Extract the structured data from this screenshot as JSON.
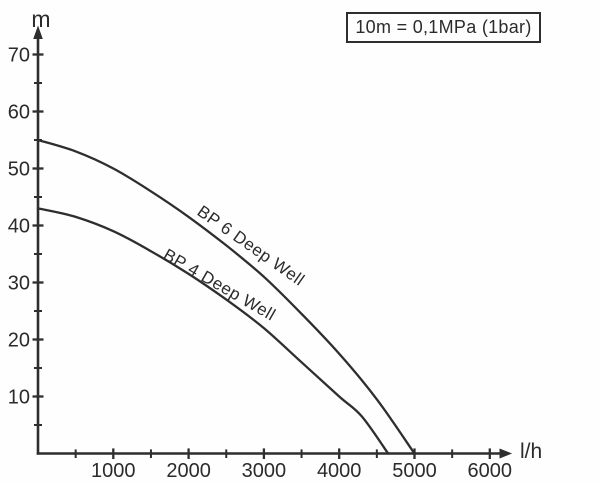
{
  "chart_data": {
    "type": "line",
    "title": "",
    "annotation": "10m = 0,1MPa (1bar)",
    "grid": false,
    "line_color": "#2e2e2e",
    "background_color": "#fefefe",
    "x_axis": {
      "unit": "l/h",
      "range": [
        0,
        6300
      ],
      "major_ticks": [
        1000,
        2000,
        3000,
        4000,
        5000,
        6000
      ],
      "tick_labels": [
        "1000",
        "2000",
        "3000",
        "4000",
        "5000",
        "6000"
      ],
      "minor_ticks": [
        500,
        1500,
        2500,
        3500,
        4500,
        5500
      ]
    },
    "y_axis": {
      "unit": "m",
      "range": [
        0,
        75
      ],
      "major_ticks": [
        10,
        20,
        30,
        40,
        50,
        60,
        70
      ],
      "tick_labels": [
        "10",
        "20",
        "30",
        "40",
        "50",
        "60",
        "70"
      ],
      "minor_ticks": [
        5,
        15,
        25,
        35,
        45,
        55,
        65
      ]
    },
    "series": [
      {
        "name": "BP 6 Deep Well",
        "points": [
          [
            0,
            55
          ],
          [
            500,
            53
          ],
          [
            1000,
            50
          ],
          [
            1500,
            46
          ],
          [
            2000,
            41.5
          ],
          [
            2500,
            36.5
          ],
          [
            3000,
            31
          ],
          [
            3500,
            24.5
          ],
          [
            4000,
            17.5
          ],
          [
            4500,
            9.5
          ],
          [
            5000,
            0
          ]
        ]
      },
      {
        "name": "BP 4 Deep Well",
        "points": [
          [
            0,
            43
          ],
          [
            500,
            41.5
          ],
          [
            1000,
            39
          ],
          [
            1500,
            35.5
          ],
          [
            2000,
            31.5
          ],
          [
            2500,
            27
          ],
          [
            3000,
            22
          ],
          [
            3500,
            16
          ],
          [
            4000,
            10
          ],
          [
            4300,
            6.5
          ],
          [
            4650,
            0
          ]
        ]
      }
    ]
  }
}
